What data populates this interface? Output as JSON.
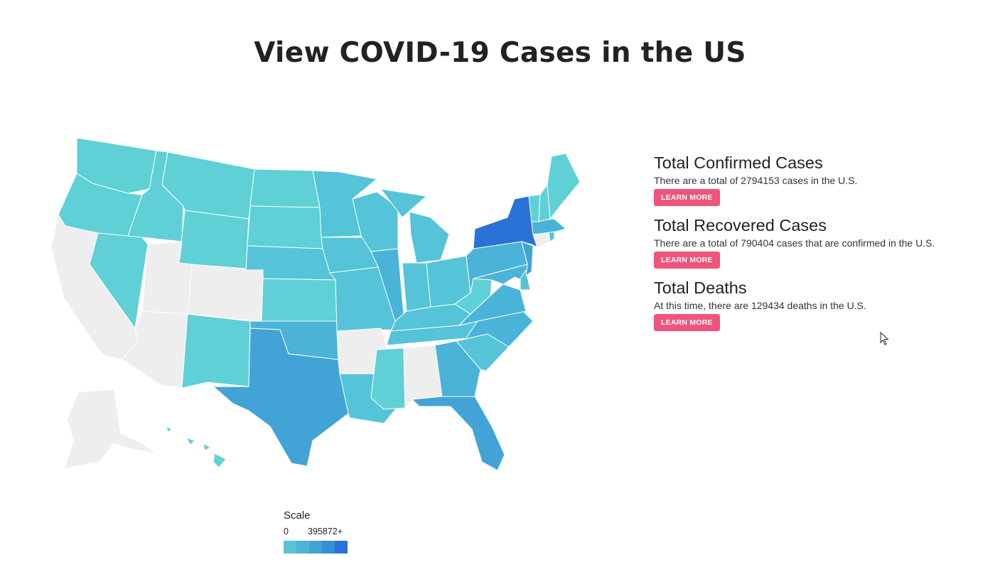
{
  "page": {
    "title": "View COVID-19 Cases in the US"
  },
  "colors": {
    "no_data": "#eeeeee",
    "level1": "#5fd0d6",
    "level2": "#55c4d8",
    "level3": "#4ab3d8",
    "level4": "#42a4d6",
    "level5": "#2a72d6",
    "button": "#f0547c"
  },
  "stats": {
    "confirmed": {
      "heading": "Total Confirmed Cases",
      "text": "There are a total of 2794153 cases in the U.S.",
      "button": "LEARN MORE"
    },
    "recovered": {
      "heading": "Total Recovered Cases",
      "text": "There are a total of 790404 cases that are confirmed in the U.S.",
      "button": "LEARN MORE"
    },
    "deaths": {
      "heading": "Total Deaths",
      "text": "At this time, there are 129434 deaths in the U.S.",
      "button": "LEARN MORE"
    }
  },
  "legend": {
    "title": "Scale",
    "min_label": "0",
    "max_label": "395872+",
    "swatches": [
      "#5ac4d6",
      "#4eb5d8",
      "#42a4d6",
      "#3690d6",
      "#2a72d6"
    ]
  },
  "map": {
    "level_by_state": {
      "WA": 1,
      "OR": 1,
      "ID": 1,
      "MT": 1,
      "WY": 1,
      "ND": 1,
      "SD": 1,
      "NE": 2,
      "KS": 1,
      "MN": 2,
      "IA": 2,
      "MO": 2,
      "WI": 2,
      "IL": 3,
      "MI": 2,
      "IN": 2,
      "OH": 2,
      "KY": 2,
      "TN": 2,
      "MS": 1,
      "LA": 2,
      "TX": 4,
      "OK": 3,
      "NM": 1,
      "NV": 1,
      "AZ": 0,
      "UT": 0,
      "CO": 0,
      "CA": 0,
      "AR": 0,
      "AL": 0,
      "GA": 3,
      "FL": 4,
      "SC": 2,
      "NC": 3,
      "VA": 3,
      "WV": 1,
      "PA": 3,
      "NY": 5,
      "NJ": 4,
      "MD": 3,
      "DE": 2,
      "CT": 0,
      "RI": 2,
      "MA": 3,
      "VT": 1,
      "NH": 1,
      "ME": 1,
      "AK": 0,
      "HI": 1
    }
  }
}
